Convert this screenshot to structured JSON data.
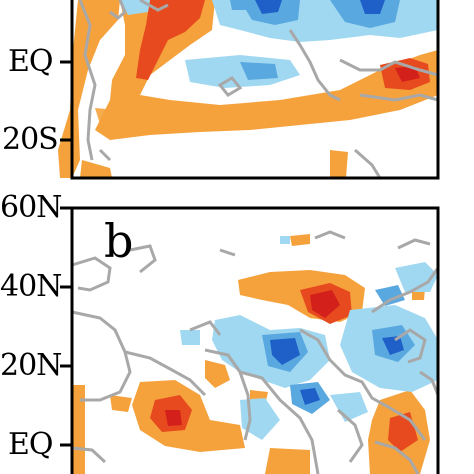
{
  "top_panel": {
    "lat_labels": [
      "EQ",
      "20S"
    ]
  },
  "bottom_panel": {
    "letter": "b",
    "lat_labels": [
      "60N",
      "40N",
      "20N",
      "EQ"
    ]
  },
  "colors": {
    "warm_light": "#f5a23c",
    "warm_strong": "#e64a1e",
    "warm_deep": "#d4201a",
    "cool_light": "#9fd8f0",
    "cool_mid": "#5aa8e0",
    "cool_deep": "#1f5fc8",
    "coast": "#a8a8a8",
    "frame": "#000000"
  }
}
